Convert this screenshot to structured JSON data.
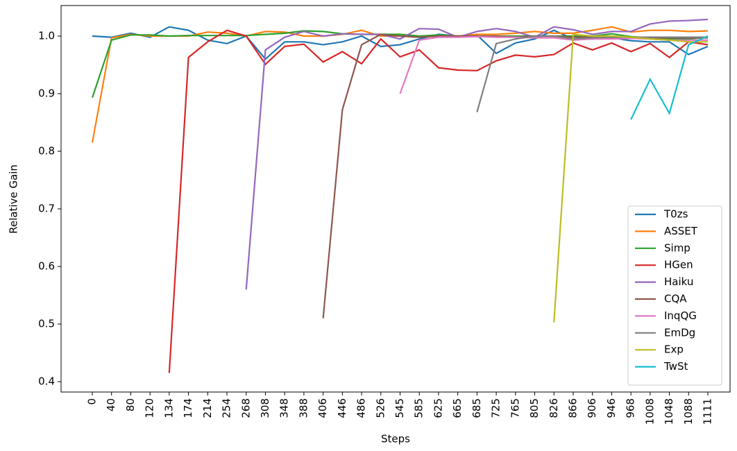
{
  "chart_data": {
    "type": "line",
    "y_label": "Relative Gain",
    "x_label": "Steps",
    "categories": [
      "0",
      "40",
      "80",
      "120",
      "134",
      "174",
      "214",
      "254",
      "268",
      "308",
      "348",
      "388",
      "406",
      "446",
      "486",
      "526",
      "545",
      "585",
      "625",
      "665",
      "685",
      "725",
      "765",
      "805",
      "826",
      "866",
      "906",
      "946",
      "968",
      "1008",
      "1048",
      "1088",
      "1111"
    ],
    "ylim": [
      0.382,
      1.053
    ],
    "yticks": [
      {
        "value": 0.4,
        "label": "0.4"
      },
      {
        "value": 0.5,
        "label": "0.5"
      },
      {
        "value": 0.6,
        "label": "0.6"
      },
      {
        "value": 0.7,
        "label": "0.7"
      },
      {
        "value": 0.8,
        "label": "0.8"
      },
      {
        "value": 0.9,
        "label": "0.9"
      },
      {
        "value": 1.0,
        "label": "1.0"
      }
    ],
    "grid": false,
    "legend": "lower right",
    "series": [
      {
        "name": "T0zs",
        "color": "#1f77b4",
        "values": [
          1.0,
          0.998,
          1.005,
          0.998,
          1.016,
          1.01,
          0.993,
          0.987,
          1.0,
          0.96,
          0.99,
          0.99,
          0.985,
          0.99,
          1.0,
          0.982,
          0.985,
          0.995,
          1.003,
          1.0,
          1.002,
          0.97,
          0.988,
          0.995,
          1.01,
          0.995,
          0.995,
          0.997,
          0.992,
          0.99,
          0.99,
          0.968,
          0.982
        ]
      },
      {
        "name": "ASSET",
        "color": "#ff7f0e",
        "values": [
          0.815,
          0.997,
          1.003,
          1.0,
          1.0,
          1.0,
          1.007,
          1.005,
          1.0,
          1.008,
          1.007,
          1.0,
          1.0,
          1.003,
          1.01,
          1.0,
          1.0,
          1.0,
          1.0,
          1.0,
          1.003,
          1.003,
          1.005,
          1.008,
          1.005,
          1.005,
          1.01,
          1.016,
          1.007,
          1.01,
          1.01,
          1.008,
          1.009
        ]
      },
      {
        "name": "Simp",
        "color": "#2ca02c",
        "values": [
          0.893,
          0.993,
          1.002,
          1.002,
          1.0,
          1.001,
          1.001,
          1.001,
          1.001,
          1.003,
          1.005,
          1.009,
          1.008,
          1.004,
          1.003,
          1.003,
          1.003,
          1.0,
          1.002,
          1.0,
          1.0,
          1.0,
          1.0,
          1.0,
          1.0,
          1.0,
          1.0,
          1.004,
          0.999,
          0.997,
          0.995,
          0.995,
          0.998
        ]
      },
      {
        "name": "HGen",
        "color": "#d62728",
        "values": [
          null,
          null,
          null,
          null,
          0.415,
          0.963,
          0.99,
          1.01,
          1.0,
          0.951,
          0.982,
          0.986,
          0.955,
          0.973,
          0.952,
          0.995,
          0.964,
          0.976,
          0.945,
          0.941,
          0.94,
          0.957,
          0.967,
          0.964,
          0.968,
          0.988,
          0.976,
          0.988,
          0.973,
          0.987,
          0.963,
          0.99,
          0.985
        ]
      },
      {
        "name": "Haiku",
        "color": "#9467bd",
        "values": [
          null,
          null,
          null,
          null,
          null,
          null,
          null,
          null,
          0.56,
          0.976,
          0.998,
          1.008,
          1.0,
          1.004,
          1.003,
          1.003,
          0.995,
          1.013,
          1.012,
          0.998,
          1.008,
          1.013,
          1.008,
          0.998,
          1.016,
          1.011,
          1.003,
          1.008,
          1.008,
          1.021,
          1.026,
          1.027,
          1.029
        ]
      },
      {
        "name": "CQA",
        "color": "#8c564b",
        "values": [
          null,
          null,
          null,
          null,
          null,
          null,
          null,
          null,
          null,
          null,
          null,
          null,
          0.51,
          0.872,
          0.985,
          1.003,
          1.0,
          0.998,
          1.0,
          1.0,
          1.0,
          1.0,
          0.998,
          1.0,
          1.0,
          0.998,
          0.998,
          0.998,
          0.998,
          0.997,
          0.997,
          0.997,
          0.997
        ]
      },
      {
        "name": "InqQG",
        "color": "#e377c2",
        "values": [
          null,
          null,
          null,
          null,
          null,
          null,
          null,
          null,
          null,
          null,
          null,
          null,
          null,
          null,
          null,
          null,
          0.9,
          0.993,
          0.998,
          0.998,
          0.999,
          0.998,
          0.998,
          0.997,
          0.997,
          0.993,
          0.995,
          0.995,
          0.996,
          0.995,
          0.993,
          0.993,
          0.993
        ]
      },
      {
        "name": "EmDg",
        "color": "#7f7f7f",
        "values": [
          null,
          null,
          null,
          null,
          null,
          null,
          null,
          null,
          null,
          null,
          null,
          null,
          null,
          null,
          null,
          null,
          null,
          null,
          null,
          null,
          0.868,
          0.987,
          0.995,
          1.0,
          1.0,
          0.995,
          0.997,
          0.998,
          0.998,
          0.998,
          0.998,
          0.998,
          0.998
        ]
      },
      {
        "name": "Exp",
        "color": "#bcbd22",
        "values": [
          null,
          null,
          null,
          null,
          null,
          null,
          null,
          null,
          null,
          null,
          null,
          null,
          null,
          null,
          null,
          null,
          null,
          null,
          null,
          null,
          null,
          null,
          null,
          null,
          0.503,
          1.003,
          1.0,
          1.0,
          0.998,
          0.995,
          0.993,
          0.99,
          0.99
        ]
      },
      {
        "name": "TwSt",
        "color": "#17becf",
        "values": [
          null,
          null,
          null,
          null,
          null,
          null,
          null,
          null,
          null,
          null,
          null,
          null,
          null,
          null,
          null,
          null,
          null,
          null,
          null,
          null,
          null,
          null,
          null,
          null,
          null,
          null,
          null,
          null,
          0.855,
          0.925,
          0.866,
          0.985,
          1.0
        ]
      }
    ]
  }
}
